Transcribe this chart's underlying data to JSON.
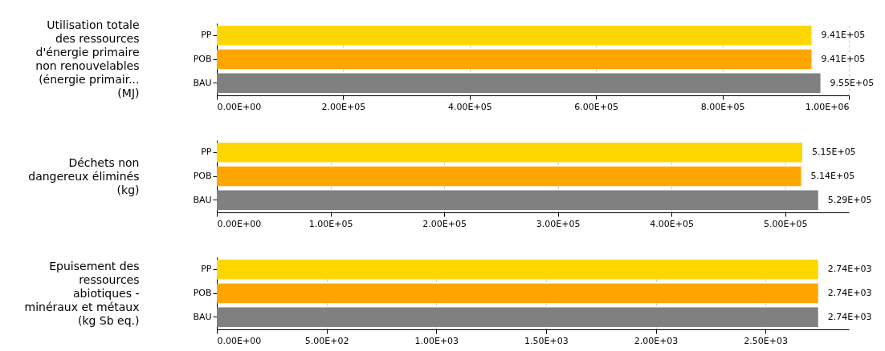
{
  "chart_data": [
    {
      "type": "bar",
      "orientation": "horizontal",
      "ylabel": "Utilisation totale\ndes ressources\nd'énergie primaire\nnon renouvelables\n(énergie primair...\n(MJ)",
      "categories": [
        "PP",
        "POB",
        "BAU"
      ],
      "values": [
        941000,
        941000,
        955000
      ],
      "colors": [
        "#ffd700",
        "#ffa500",
        "#808080"
      ],
      "value_labels": [
        "9.41E+05",
        "9.41E+05",
        "9.55E+05"
      ],
      "xlim": [
        0,
        1000000
      ],
      "xticks": [
        {
          "value": 0,
          "label": "0.00E+00"
        },
        {
          "value": 200000,
          "label": "2.00E+05"
        },
        {
          "value": 400000,
          "label": "4.00E+05"
        },
        {
          "value": 600000,
          "label": "6.00E+05"
        },
        {
          "value": 800000,
          "label": "8.00E+05"
        },
        {
          "value": 1000000,
          "label": "1.00E+06"
        }
      ],
      "grid": "x"
    },
    {
      "type": "bar",
      "orientation": "horizontal",
      "ylabel": "Déchets non\ndangereux éliminés\n(kg)",
      "categories": [
        "PP",
        "POB",
        "BAU"
      ],
      "values": [
        515000,
        514000,
        529000
      ],
      "colors": [
        "#ffd700",
        "#ffa500",
        "#808080"
      ],
      "value_labels": [
        "5.15E+05",
        "5.14E+05",
        "5.29E+05"
      ],
      "xlim": [
        0,
        556000
      ],
      "xticks": [
        {
          "value": 0,
          "label": "0.00E+00"
        },
        {
          "value": 100000,
          "label": "1.00E+05"
        },
        {
          "value": 200000,
          "label": "2.00E+05"
        },
        {
          "value": 300000,
          "label": "3.00E+05"
        },
        {
          "value": 400000,
          "label": "4.00E+05"
        },
        {
          "value": 500000,
          "label": "5.00E+05"
        }
      ],
      "grid": "x"
    },
    {
      "type": "bar",
      "orientation": "horizontal",
      "ylabel": "Epuisement des\nressources\nabiotiques -\nminéraux et métaux\n(kg Sb eq.)",
      "categories": [
        "PP",
        "POB",
        "BAU"
      ],
      "values": [
        2740,
        2740,
        2740
      ],
      "colors": [
        "#ffd700",
        "#ffa500",
        "#808080"
      ],
      "value_labels": [
        "2.74E+03",
        "2.74E+03",
        "2.74E+03"
      ],
      "xlim": [
        0,
        2880
      ],
      "xticks": [
        {
          "value": 0,
          "label": "0.00E+00"
        },
        {
          "value": 500,
          "label": "5.00E+02"
        },
        {
          "value": 1000,
          "label": "1.00E+03"
        },
        {
          "value": 1500,
          "label": "1.50E+03"
        },
        {
          "value": 2000,
          "label": "2.00E+03"
        },
        {
          "value": 2500,
          "label": "2.50E+03"
        }
      ],
      "grid": "x"
    }
  ]
}
